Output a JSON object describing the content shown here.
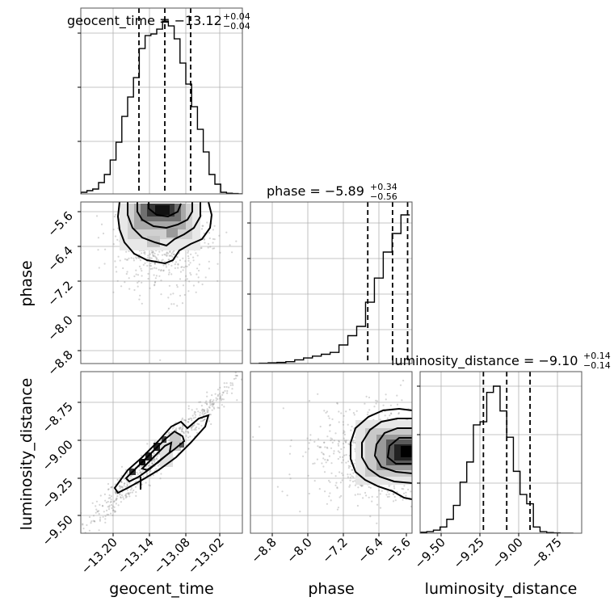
{
  "chart_data": [
    {
      "type": "histogram",
      "parameter": "geocent_time",
      "title": "geocent_time = −13.12",
      "title_sup": "+0.04",
      "title_sub": "−0.04",
      "x": [
        -13.245,
        -13.236,
        -13.227,
        -13.218,
        -13.209,
        -13.2,
        -13.191,
        -13.182,
        -13.173,
        -13.164,
        -13.155,
        -13.146,
        -13.137,
        -13.128,
        -13.119,
        -13.11,
        -13.101,
        -13.092,
        -13.083,
        -13.074,
        -13.065,
        -13.056,
        -13.047,
        -13.038,
        -13.029,
        -13.02,
        -13.011,
        -13.002
      ],
      "values": [
        0.5,
        1.0,
        1.5,
        3.5,
        6.0,
        10.5,
        16.0,
        24.0,
        30.0,
        36.0,
        45.0,
        49.0,
        49.5,
        51.0,
        53.5,
        52.0,
        48.0,
        40.5,
        34.0,
        27.0,
        20.0,
        13.0,
        6.0,
        3.0,
        0.5,
        0.2,
        0.1,
        0.0
      ],
      "quantiles": [
        -13.16,
        -13.12,
        -13.08
      ],
      "xlim": [
        -13.25,
        -13.0
      ],
      "xticks": [
        "−13.20",
        "−13.14",
        "−13.08",
        "−13.02"
      ],
      "xlabel": "geocent_time"
    },
    {
      "type": "histogram",
      "parameter": "phase",
      "title": "phase = −5.89",
      "title_sup": "+0.34",
      "title_sub": "−0.56",
      "x": [
        -9.0,
        -8.8,
        -8.6,
        -8.4,
        -8.2,
        -8.0,
        -7.8,
        -7.6,
        -7.4,
        -7.2,
        -7.0,
        -6.8,
        -6.6,
        -6.4,
        -6.2,
        -6.0,
        -5.8,
        -5.6
      ],
      "values": [
        0.0,
        0.1,
        0.2,
        0.3,
        0.5,
        1.0,
        1.5,
        2.0,
        2.5,
        3.0,
        5.0,
        7.5,
        10.0,
        16.5,
        23.0,
        30.0,
        35.0,
        40.0
      ],
      "quantiles": [
        -6.45,
        -5.89,
        -5.55
      ],
      "xlim": [
        -9.1,
        -5.45
      ],
      "yticks": [
        "−5.6",
        "−6.4",
        "−7.2",
        "−8.0",
        "−8.8"
      ],
      "xticks": [
        "−8.8",
        "−8.0",
        "−7.2",
        "−6.4",
        "−5.6"
      ],
      "xlabel": "phase",
      "ylabel": "phase"
    },
    {
      "type": "histogram",
      "parameter": "luminosity_distance",
      "title": "luminosity_distance = −9.10",
      "title_sup": "+0.14",
      "title_sub": "−0.14",
      "x": [
        -9.6,
        -9.56,
        -9.52,
        -9.48,
        -9.44,
        -9.4,
        -9.36,
        -9.32,
        -9.28,
        -9.24,
        -9.2,
        -9.16,
        -9.12,
        -9.08,
        -9.04,
        -9.0,
        -8.96,
        -8.92,
        -8.88,
        -8.84,
        -8.8,
        -8.76,
        -8.72
      ],
      "values": [
        0.3,
        0.5,
        1.0,
        2.0,
        4.5,
        9.0,
        16.5,
        23.0,
        35.0,
        36.0,
        45.5,
        47.5,
        39.5,
        31.0,
        20.0,
        12.5,
        9.5,
        2.0,
        0.5,
        0.2,
        0.1,
        0.0,
        0.0
      ],
      "quantiles": [
        -9.24,
        -9.1,
        -8.96
      ],
      "xlim": [
        -9.62,
        -8.65
      ],
      "yticks": [
        "−8.75",
        "−9.00",
        "−9.25",
        "−9.50"
      ],
      "xticks": [
        "−9.50",
        "−9.25",
        "−9.00",
        "−8.75"
      ],
      "xlabel": "luminosity_distance",
      "ylabel": "luminosity_distance"
    },
    {
      "type": "scatter+contour",
      "x_parameter": "geocent_time",
      "y_parameter": "phase",
      "xlim": [
        -13.25,
        -13.0
      ],
      "ylim": [
        -9.1,
        -5.45
      ]
    },
    {
      "type": "scatter+contour",
      "x_parameter": "geocent_time",
      "y_parameter": "luminosity_distance",
      "xlim": [
        -13.25,
        -13.0
      ],
      "ylim": [
        -9.62,
        -8.55
      ]
    },
    {
      "type": "scatter+contour",
      "x_parameter": "phase",
      "y_parameter": "luminosity_distance",
      "xlim": [
        -9.1,
        -5.45
      ],
      "ylim": [
        -9.62,
        -8.55
      ]
    }
  ]
}
